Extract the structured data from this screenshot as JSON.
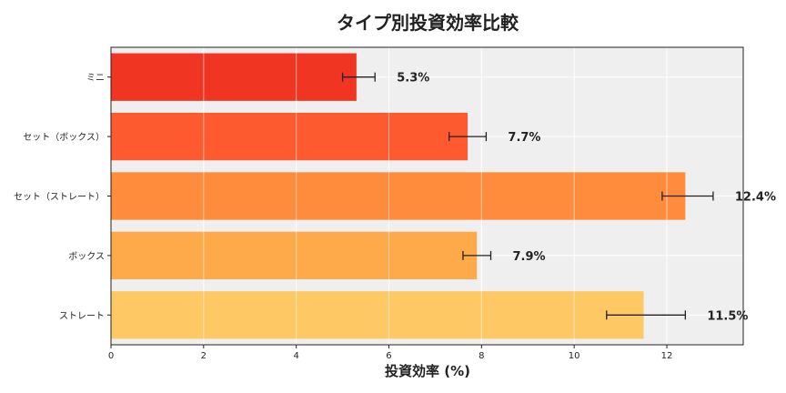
{
  "chart_data": {
    "type": "bar",
    "orientation": "horizontal",
    "title": "タイプ別投資効率比較",
    "xlabel": "投資効率 (%)",
    "ylabel": "",
    "categories": [
      "ミニ",
      "セット（ボックス）",
      "セット（ストレート）",
      "ボックス",
      "ストレート"
    ],
    "values": [
      5.3,
      7.7,
      12.4,
      7.9,
      11.5
    ],
    "error_low": [
      5.0,
      7.3,
      11.9,
      7.6,
      10.7
    ],
    "error_high": [
      5.7,
      8.1,
      13.0,
      8.2,
      12.4
    ],
    "value_labels": [
      "5.3%",
      "7.7%",
      "12.4%",
      "7.9%",
      "11.5%"
    ],
    "bar_colors": [
      "#f03523",
      "#fe5a30",
      "#fe8c3c",
      "#feaa4a",
      "#fec965"
    ],
    "xlim": [
      0,
      13.65
    ],
    "xticks": [
      0,
      2,
      4,
      6,
      8,
      10,
      12
    ],
    "grid": true,
    "background": "#efefef"
  }
}
